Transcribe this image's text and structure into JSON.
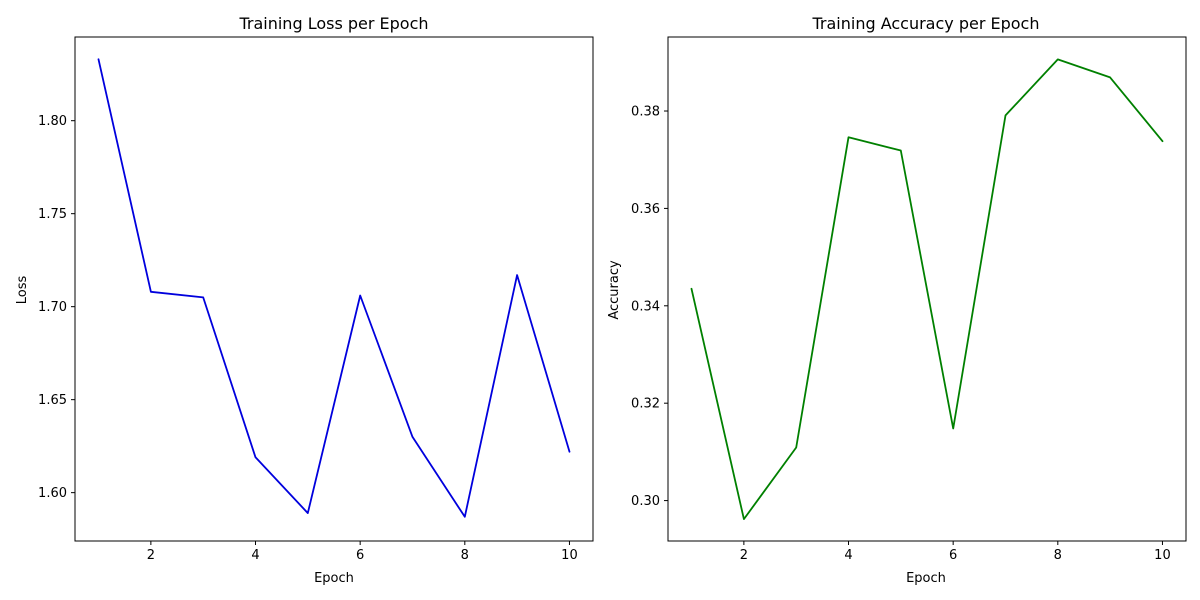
{
  "chart_data": [
    {
      "type": "line",
      "title": "Training Loss per Epoch",
      "xlabel": "Epoch",
      "ylabel": "Loss",
      "xlim": [
        0.55,
        10.45
      ],
      "ylim": [
        1.574,
        1.845
      ],
      "xticks": [
        2,
        4,
        6,
        8,
        10
      ],
      "xtick_labels": [
        "2",
        "4",
        "6",
        "8",
        "10"
      ],
      "yticks": [
        1.6,
        1.65,
        1.7,
        1.75,
        1.8
      ],
      "ytick_labels": [
        "1.60",
        "1.65",
        "1.70",
        "1.75",
        "1.80"
      ],
      "grid": false,
      "x": [
        1,
        2,
        3,
        4,
        5,
        6,
        7,
        8,
        9,
        10
      ],
      "series": [
        {
          "values": [
            1.833,
            1.708,
            1.705,
            1.619,
            1.589,
            1.706,
            1.63,
            1.587,
            1.717,
            1.622
          ],
          "color": "#0000dd"
        }
      ]
    },
    {
      "type": "line",
      "title": "Training Accuracy per Epoch",
      "xlabel": "Epoch",
      "ylabel": "Accuracy",
      "xlim": [
        0.55,
        10.45
      ],
      "ylim": [
        0.2917,
        0.3952
      ],
      "xticks": [
        2,
        4,
        6,
        8,
        10
      ],
      "xtick_labels": [
        "2",
        "4",
        "6",
        "8",
        "10"
      ],
      "yticks": [
        0.3,
        0.32,
        0.34,
        0.36,
        0.38
      ],
      "ytick_labels": [
        "0.30",
        "0.32",
        "0.34",
        "0.36",
        "0.38"
      ],
      "grid": false,
      "x": [
        1,
        2,
        3,
        4,
        5,
        6,
        7,
        8,
        9,
        10
      ],
      "series": [
        {
          "values": [
            0.3435,
            0.2962,
            0.3109,
            0.3746,
            0.3719,
            0.3148,
            0.3791,
            0.3906,
            0.3869,
            0.3738
          ],
          "color": "#008000"
        }
      ]
    }
  ]
}
